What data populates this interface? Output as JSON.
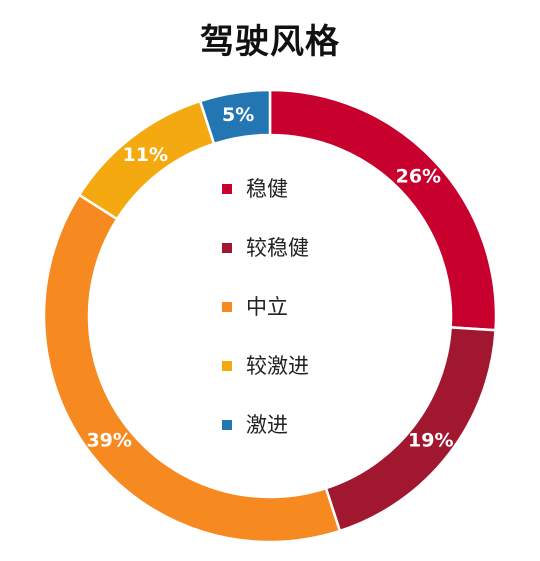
{
  "chart_data": {
    "type": "pie",
    "title": "驾驶风格",
    "categories": [
      "稳健",
      "较稳健",
      "中立",
      "较激进",
      "激进"
    ],
    "values": [
      26,
      19,
      39,
      11,
      5
    ],
    "value_labels": [
      "26%",
      "19%",
      "39%",
      "11%",
      "5%"
    ],
    "colors": [
      "#c8002d",
      "#a0172f",
      "#f6891f",
      "#f5a910",
      "#2476b3"
    ],
    "donut": true,
    "legend_position": "center"
  }
}
